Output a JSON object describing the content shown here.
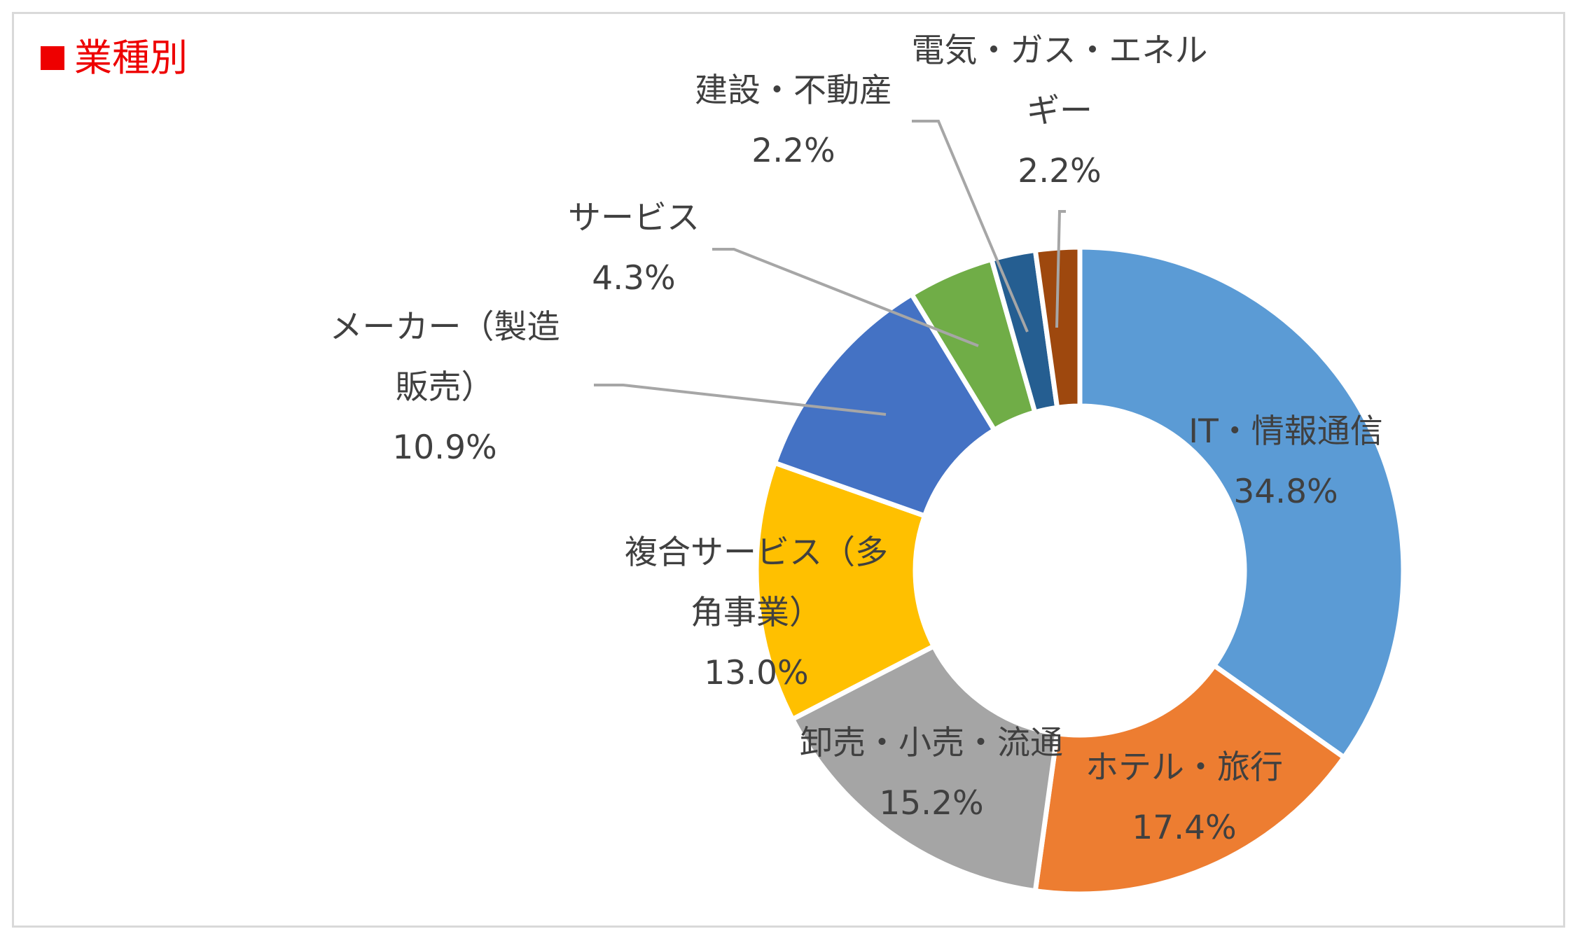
{
  "title": "業種別",
  "colors": {
    "title": "#ee0000",
    "label": "#404040",
    "leader": "#a6a6a6",
    "frame": "#d9d9d9"
  },
  "chart_data": {
    "type": "pie",
    "variant": "donut",
    "title": "業種別",
    "unit": "%",
    "slices": [
      {
        "name": "IT・情報通信",
        "value": 34.8,
        "label": "34.8%",
        "color": "#5b9bd5"
      },
      {
        "name": "ホテル・旅行",
        "value": 17.4,
        "label": "17.4%",
        "color": "#ed7d31"
      },
      {
        "name": "卸売・小売・流通",
        "value": 15.2,
        "label": "15.2%",
        "color": "#a5a5a5"
      },
      {
        "name": "複合サービス（多角事業）",
        "value": 13.0,
        "label": "13.0%",
        "color": "#ffc000"
      },
      {
        "name": "メーカー（製造販売）",
        "value": 10.9,
        "label": "10.9%",
        "color": "#4472c4"
      },
      {
        "name": "サービス",
        "value": 4.3,
        "label": "4.3%",
        "color": "#70ad47"
      },
      {
        "name": "建設・不動産",
        "value": 2.2,
        "label": "2.2%",
        "color": "#255e91"
      },
      {
        "name": "電気・ガス・エネルギー",
        "value": 2.2,
        "label": "2.2%",
        "color": "#9e480e"
      }
    ]
  }
}
